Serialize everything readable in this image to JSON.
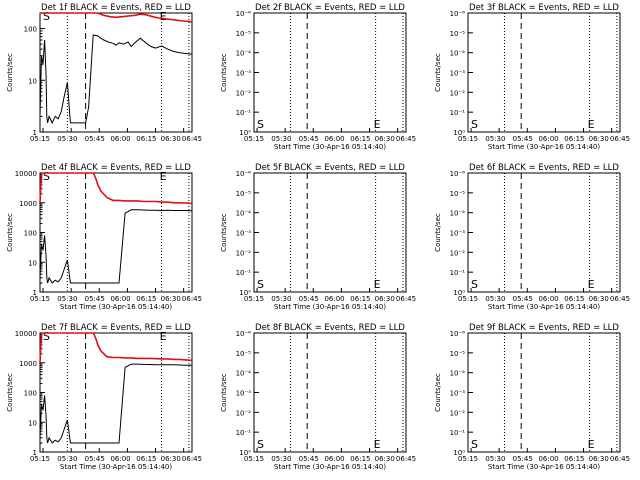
{
  "colors": {
    "events": "#000000",
    "lld": "#e01010",
    "background": "#ffffff"
  },
  "chart_data": [
    {
      "type": "line",
      "detector": "1f",
      "title": "Det 1f BLACK = Events, RED = LLD",
      "xlabel": "",
      "ylabel": "Counts/sec",
      "xticks": [
        "05:15",
        "05:30",
        "05:45",
        "06:00",
        "06:15",
        "06:30",
        "06:45"
      ],
      "yticks": [
        "1",
        "10",
        "100"
      ],
      "markers": [
        "S",
        "E"
      ],
      "xlim": [
        0,
        100
      ],
      "ylim": [
        1,
        200
      ],
      "log_y": true,
      "series": [
        {
          "name": "Events",
          "color": "black",
          "x": [
            0,
            1,
            2,
            3,
            4,
            4.5,
            5,
            6,
            8,
            10,
            12,
            14,
            16,
            18,
            20,
            22,
            25,
            28,
            30,
            32,
            35,
            38,
            40,
            42,
            45,
            48,
            50,
            52,
            55,
            58,
            60,
            63,
            66,
            70,
            73,
            76,
            80,
            84,
            88,
            92,
            96,
            100
          ],
          "y": [
            2,
            30,
            20,
            60,
            12,
            2,
            1.5,
            2,
            1.5,
            2,
            1.8,
            2.5,
            5,
            9,
            1.5,
            1.5,
            1.5,
            1.5,
            1.5,
            3,
            75,
            72,
            65,
            60,
            55,
            52,
            48,
            53,
            50,
            55,
            45,
            55,
            65,
            52,
            45,
            42,
            46,
            40,
            36,
            34,
            33,
            32
          ]
        },
        {
          "name": "LLD",
          "color": "red",
          "x": [
            0,
            1,
            2,
            3,
            4,
            6,
            8,
            12,
            16,
            20,
            24,
            28,
            30,
            32,
            35,
            38,
            42,
            46,
            50,
            54,
            58,
            62,
            66,
            70,
            74,
            78,
            82,
            86,
            90,
            94,
            100
          ],
          "y": [
            200,
            200,
            200,
            200,
            200,
            200,
            200,
            200,
            200,
            200,
            200,
            200,
            200,
            200,
            200,
            200,
            180,
            170,
            165,
            170,
            175,
            180,
            190,
            185,
            170,
            160,
            155,
            150,
            145,
            140,
            135
          ]
        }
      ]
    },
    {
      "type": "line",
      "detector": "2f",
      "title": "Det 2f BLACK = Events, RED = LLD",
      "xlabel": "Start Time (30-Apr-16 05:14:40)",
      "ylabel": "Counts/sec",
      "xticks": [
        "05:15",
        "05:30",
        "05:45",
        "06:00",
        "06:15",
        "06:30",
        "06:45"
      ],
      "yticks": [
        "10⁰",
        "10⁻¹",
        "10⁻²",
        "10⁻³",
        "10⁻⁴",
        "10⁻⁵",
        "10⁻⁶"
      ],
      "markers": [
        "S",
        "E"
      ],
      "series": []
    },
    {
      "type": "line",
      "detector": "3f",
      "title": "Det 3f BLACK = Events, RED = LLD",
      "xlabel": "Start Time (30-Apr-16 05:14:40)",
      "ylabel": "Counts/sec",
      "xticks": [
        "05:15",
        "05:30",
        "05:45",
        "06:00",
        "06:15",
        "06:30",
        "06:45"
      ],
      "yticks": [
        "10⁰",
        "10⁻¹",
        "10⁻²",
        "10⁻³",
        "10⁻⁴",
        "10⁻⁵",
        "10⁻⁶"
      ],
      "markers": [
        "S",
        "E"
      ],
      "series": []
    },
    {
      "type": "line",
      "detector": "4f",
      "title": "Det 4f BLACK = Events, RED = LLD",
      "xlabel": "Start Time (30-Apr-16 05:14:40)",
      "ylabel": "Counts/sec",
      "xticks": [
        "05:15",
        "05:30",
        "05:45",
        "06:00",
        "06:15",
        "06:30",
        "06:45"
      ],
      "yticks": [
        "1",
        "10",
        "100",
        "1000",
        "10000"
      ],
      "markers": [
        "S",
        "E"
      ],
      "xlim": [
        0,
        100
      ],
      "ylim": [
        1,
        10000
      ],
      "log_y": true,
      "series": [
        {
          "name": "Events",
          "color": "black",
          "x": [
            0,
            1,
            2,
            3,
            4,
            4.5,
            5,
            6,
            8,
            10,
            12,
            14,
            16,
            18,
            20,
            22,
            24,
            26,
            28,
            30,
            31,
            33,
            35,
            37,
            40,
            44,
            48,
            52,
            56,
            60,
            64,
            68,
            72,
            76,
            80,
            84,
            88,
            92,
            96,
            100
          ],
          "y": [
            3,
            40,
            25,
            80,
            15,
            3,
            2,
            3,
            2,
            2.5,
            2.2,
            3,
            6,
            12,
            2,
            2,
            2,
            2,
            2,
            2,
            2,
            2,
            2,
            2,
            2,
            2,
            2,
            2,
            450,
            580,
            580,
            570,
            560,
            560,
            550,
            560,
            550,
            550,
            550,
            540
          ]
        },
        {
          "name": "LLD",
          "color": "red",
          "x": [
            0,
            1,
            2,
            3,
            4,
            6,
            8,
            12,
            16,
            20,
            24,
            28,
            30,
            32,
            33,
            34,
            35,
            36,
            37,
            38,
            40,
            44,
            48,
            52,
            56,
            60,
            64,
            68,
            72,
            76,
            80,
            84,
            88,
            92,
            96,
            100
          ],
          "y": [
            1000,
            10000,
            10000,
            10000,
            10000,
            10000,
            10000,
            10000,
            10000,
            10000,
            10000,
            10000,
            10000,
            10000,
            10000,
            10000,
            10000,
            8000,
            6000,
            4000,
            2500,
            1500,
            1200,
            1200,
            1150,
            1150,
            1150,
            1100,
            1100,
            1100,
            1050,
            1050,
            1000,
            1000,
            980,
            950
          ]
        }
      ]
    },
    {
      "type": "line",
      "detector": "5f",
      "title": "Det 5f BLACK = Events, RED = LLD",
      "xlabel": "Start Time (30-Apr-16 05:14:40)",
      "ylabel": "Counts/sec",
      "xticks": [
        "05:15",
        "05:30",
        "05:45",
        "06:00",
        "06:15",
        "06:30",
        "06:45"
      ],
      "yticks": [
        "10⁰",
        "10⁻¹",
        "10⁻²",
        "10⁻³",
        "10⁻⁴",
        "10⁻⁵",
        "10⁻⁶"
      ],
      "markers": [
        "S",
        "E"
      ],
      "series": []
    },
    {
      "type": "line",
      "detector": "6f",
      "title": "Det 6f BLACK = Events, RED = LLD",
      "xlabel": "Start Time (30-Apr-16 05:14:40)",
      "ylabel": "Counts/sec",
      "xticks": [
        "05:15",
        "05:30",
        "05:45",
        "06:00",
        "06:15",
        "06:30",
        "06:45"
      ],
      "yticks": [
        "10⁰",
        "10⁻¹",
        "10⁻²",
        "10⁻³",
        "10⁻⁴",
        "10⁻⁵",
        "10⁻⁶"
      ],
      "markers": [
        "S",
        "E"
      ],
      "series": []
    },
    {
      "type": "line",
      "detector": "7f",
      "title": "Det 7f BLACK = Events, RED = LLD",
      "xlabel": "Start Time (30-Apr-16 05:14:40)",
      "ylabel": "Counts/sec",
      "xticks": [
        "05:15",
        "05:30",
        "05:45",
        "06:00",
        "06:15",
        "06:30",
        "06:45"
      ],
      "yticks": [
        "1",
        "10",
        "100",
        "1000",
        "10000"
      ],
      "markers": [
        "S",
        "E"
      ],
      "xlim": [
        0,
        100
      ],
      "ylim": [
        1,
        10000
      ],
      "log_y": true,
      "series": [
        {
          "name": "Events",
          "color": "black",
          "x": [
            0,
            1,
            2,
            3,
            4,
            4.5,
            5,
            6,
            8,
            10,
            12,
            14,
            16,
            18,
            20,
            22,
            24,
            26,
            28,
            30,
            31,
            33,
            35,
            37,
            40,
            44,
            48,
            52,
            56,
            60,
            64,
            68,
            72,
            76,
            80,
            84,
            88,
            92,
            96,
            100
          ],
          "y": [
            3,
            40,
            25,
            80,
            15,
            3,
            2,
            3,
            2,
            2.5,
            2.2,
            3,
            6,
            12,
            2,
            2,
            2,
            2,
            2,
            2,
            2,
            2,
            2,
            2,
            2,
            2,
            2,
            2,
            700,
            900,
            900,
            880,
            870,
            860,
            850,
            860,
            850,
            840,
            830,
            820
          ]
        },
        {
          "name": "LLD",
          "color": "red",
          "x": [
            0,
            1,
            2,
            3,
            4,
            6,
            8,
            12,
            16,
            20,
            24,
            28,
            30,
            32,
            33,
            34,
            35,
            36,
            37,
            38,
            40,
            44,
            48,
            52,
            56,
            60,
            64,
            68,
            72,
            76,
            80,
            84,
            88,
            92,
            96,
            100
          ],
          "y": [
            1000,
            10000,
            10000,
            10000,
            10000,
            10000,
            10000,
            10000,
            10000,
            10000,
            10000,
            10000,
            10000,
            10000,
            10000,
            10000,
            10000,
            8000,
            6000,
            4000,
            2500,
            1600,
            1500,
            1500,
            1450,
            1450,
            1400,
            1400,
            1400,
            1380,
            1350,
            1350,
            1300,
            1300,
            1250,
            1200
          ]
        }
      ]
    },
    {
      "type": "line",
      "detector": "8f",
      "title": "Det 8f BLACK = Events, RED = LLD",
      "xlabel": "Start Time (30-Apr-16 05:14:40)",
      "ylabel": "Counts/sec",
      "xticks": [
        "05:15",
        "05:30",
        "05:45",
        "06:00",
        "06:15",
        "06:30",
        "06:45"
      ],
      "yticks": [
        "10⁰",
        "10⁻¹",
        "10⁻²",
        "10⁻³",
        "10⁻⁴",
        "10⁻⁵",
        "10⁻⁶"
      ],
      "markers": [
        "S",
        "E"
      ],
      "series": []
    },
    {
      "type": "line",
      "detector": "9f",
      "title": "Det 9f BLACK = Events, RED = LLD",
      "xlabel": "Start Time (30-Apr-16 05:14:40)",
      "ylabel": "Counts/sec",
      "xticks": [
        "05:15",
        "05:30",
        "05:45",
        "06:00",
        "06:15",
        "06:30",
        "06:45"
      ],
      "yticks": [
        "10⁰",
        "10⁻¹",
        "10⁻²",
        "10⁻³",
        "10⁻⁴",
        "10⁻⁵",
        "10⁻⁶"
      ],
      "markers": [
        "S",
        "E"
      ],
      "series": []
    }
  ]
}
